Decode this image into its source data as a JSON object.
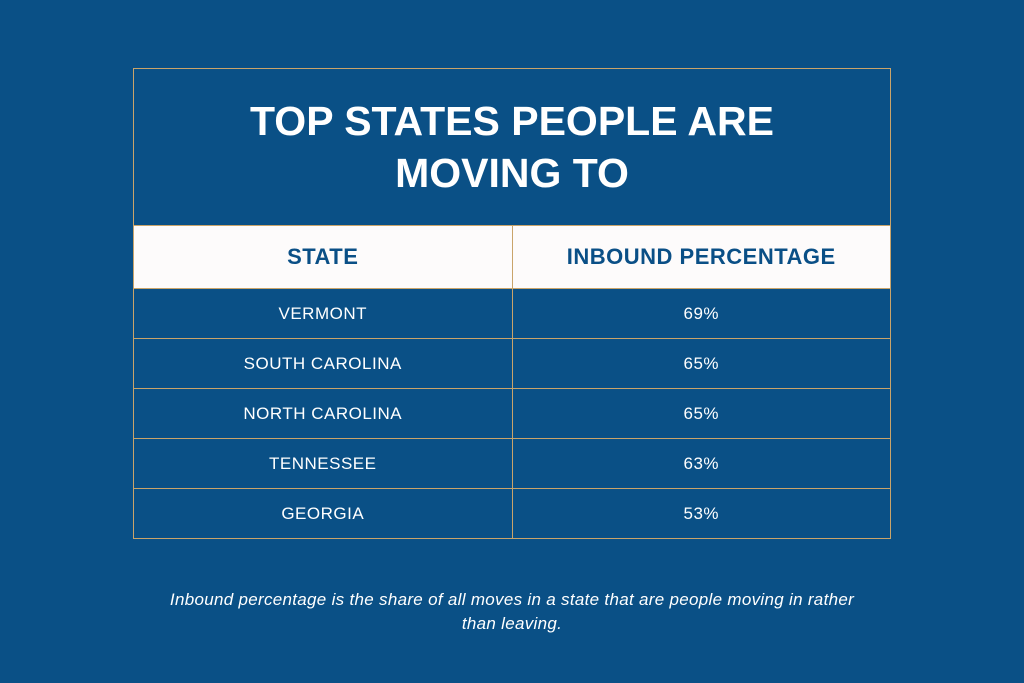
{
  "title": "TOP STATES PEOPLE ARE MOVING TO",
  "table": {
    "header": [
      "STATE",
      "INBOUND PERCENTAGE"
    ],
    "rows": [
      [
        "VERMONT",
        "69%"
      ],
      [
        "SOUTH CAROLINA",
        "65%"
      ],
      [
        "NORTH CAROLINA",
        "65%"
      ],
      [
        "TENNESSEE",
        "63%"
      ],
      [
        "GEORGIA",
        "53%"
      ]
    ]
  },
  "footnote": "Inbound percentage is the share of all moves in a state that are people moving in rather than leaving."
}
